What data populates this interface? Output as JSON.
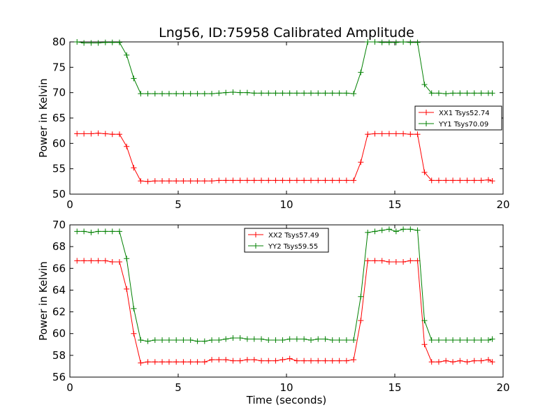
{
  "title": "Lng56, ID:75958 Calibrated Amplitude",
  "chart_data": [
    {
      "type": "line",
      "xlabel": "",
      "ylabel": "Power in Kelvin",
      "xlim": [
        0,
        20
      ],
      "ylim": [
        50,
        80
      ],
      "xticks": [
        "0",
        "5",
        "10",
        "15",
        "20"
      ],
      "yticks": [
        "50",
        "55",
        "60",
        "65",
        "70",
        "75",
        "80"
      ],
      "grid": false,
      "legend_position": "right",
      "x": [
        0.33,
        0.65,
        0.98,
        1.31,
        1.64,
        1.96,
        2.29,
        2.62,
        2.95,
        3.27,
        3.6,
        3.93,
        4.26,
        4.58,
        4.91,
        5.24,
        5.57,
        5.89,
        6.22,
        6.55,
        6.88,
        7.2,
        7.53,
        7.86,
        8.19,
        8.51,
        8.84,
        9.17,
        9.5,
        9.82,
        10.15,
        10.48,
        10.81,
        11.13,
        11.46,
        11.79,
        12.12,
        12.44,
        12.77,
        13.1,
        13.43,
        13.75,
        14.08,
        14.41,
        14.74,
        15.06,
        15.39,
        15.72,
        16.05,
        16.37,
        16.7,
        17.03,
        17.36,
        17.68,
        18.01,
        18.34,
        18.67,
        18.99,
        19.32,
        19.5
      ],
      "series": [
        {
          "name": "XX1 Tsys52.74",
          "color": "#ff0000",
          "values": [
            61.9,
            61.9,
            61.9,
            62.0,
            61.9,
            61.8,
            61.8,
            59.4,
            55.2,
            52.6,
            52.5,
            52.6,
            52.6,
            52.6,
            52.6,
            52.6,
            52.6,
            52.6,
            52.6,
            52.6,
            52.7,
            52.7,
            52.7,
            52.7,
            52.7,
            52.7,
            52.7,
            52.7,
            52.7,
            52.7,
            52.7,
            52.7,
            52.7,
            52.7,
            52.7,
            52.7,
            52.7,
            52.7,
            52.7,
            52.7,
            56.3,
            61.8,
            61.9,
            61.9,
            61.9,
            61.9,
            61.9,
            61.8,
            61.8,
            54.3,
            52.7,
            52.7,
            52.7,
            52.7,
            52.7,
            52.7,
            52.7,
            52.7,
            52.8,
            52.6
          ]
        },
        {
          "name": "YY1 Tsys70.09",
          "color": "#008000",
          "values": [
            80.0,
            79.8,
            79.8,
            79.8,
            79.9,
            79.9,
            79.9,
            77.4,
            72.8,
            69.8,
            69.8,
            69.8,
            69.8,
            69.8,
            69.8,
            69.8,
            69.8,
            69.8,
            69.8,
            69.8,
            69.9,
            70.0,
            70.1,
            70.0,
            70.0,
            69.9,
            69.9,
            69.9,
            69.9,
            69.9,
            69.9,
            69.9,
            69.9,
            69.9,
            69.9,
            69.9,
            69.9,
            69.9,
            69.9,
            69.8,
            74.0,
            80.0,
            80.0,
            79.9,
            79.9,
            79.9,
            80.0,
            79.9,
            79.9,
            71.6,
            69.9,
            69.9,
            69.8,
            69.9,
            69.9,
            69.9,
            69.9,
            69.9,
            69.9,
            69.9
          ]
        }
      ]
    },
    {
      "type": "line",
      "xlabel": "Time (seconds)",
      "ylabel": "Power in Kelvin",
      "xlim": [
        0,
        20
      ],
      "ylim": [
        56,
        70
      ],
      "xticks": [
        "0",
        "5",
        "10",
        "15",
        "20"
      ],
      "yticks": [
        "56",
        "58",
        "60",
        "62",
        "64",
        "66",
        "68",
        "70"
      ],
      "grid": false,
      "legend_position": "top-center",
      "x": [
        0.33,
        0.65,
        0.98,
        1.31,
        1.64,
        1.96,
        2.29,
        2.62,
        2.95,
        3.27,
        3.6,
        3.93,
        4.26,
        4.58,
        4.91,
        5.24,
        5.57,
        5.89,
        6.22,
        6.55,
        6.88,
        7.2,
        7.53,
        7.86,
        8.19,
        8.51,
        8.84,
        9.17,
        9.5,
        9.82,
        10.15,
        10.48,
        10.81,
        11.13,
        11.46,
        11.79,
        12.12,
        12.44,
        12.77,
        13.1,
        13.43,
        13.75,
        14.08,
        14.41,
        14.74,
        15.06,
        15.39,
        15.72,
        16.05,
        16.37,
        16.7,
        17.03,
        17.36,
        17.68,
        18.01,
        18.34,
        18.67,
        18.99,
        19.32,
        19.5
      ],
      "series": [
        {
          "name": "XX2 Tsys57.49",
          "color": "#ff0000",
          "values": [
            66.7,
            66.7,
            66.7,
            66.7,
            66.7,
            66.6,
            66.6,
            64.1,
            60.0,
            57.3,
            57.4,
            57.4,
            57.4,
            57.4,
            57.4,
            57.4,
            57.4,
            57.4,
            57.4,
            57.6,
            57.6,
            57.6,
            57.5,
            57.5,
            57.6,
            57.6,
            57.5,
            57.5,
            57.5,
            57.6,
            57.7,
            57.5,
            57.5,
            57.5,
            57.5,
            57.5,
            57.5,
            57.5,
            57.5,
            57.6,
            61.2,
            66.7,
            66.7,
            66.7,
            66.6,
            66.6,
            66.6,
            66.7,
            66.7,
            59.0,
            57.4,
            57.4,
            57.5,
            57.4,
            57.5,
            57.4,
            57.5,
            57.5,
            57.6,
            57.4
          ]
        },
        {
          "name": "YY2 Tsys59.55",
          "color": "#008000",
          "values": [
            69.4,
            69.4,
            69.3,
            69.4,
            69.4,
            69.4,
            69.4,
            66.9,
            62.3,
            59.4,
            59.3,
            59.4,
            59.4,
            59.4,
            59.4,
            59.4,
            59.4,
            59.3,
            59.3,
            59.4,
            59.4,
            59.5,
            59.6,
            59.6,
            59.5,
            59.5,
            59.5,
            59.4,
            59.4,
            59.4,
            59.5,
            59.5,
            59.5,
            59.4,
            59.5,
            59.5,
            59.4,
            59.4,
            59.4,
            59.4,
            63.4,
            69.3,
            69.4,
            69.5,
            69.6,
            69.4,
            69.6,
            69.6,
            69.5,
            61.2,
            59.4,
            59.4,
            59.4,
            59.4,
            59.4,
            59.4,
            59.4,
            59.4,
            59.4,
            59.5
          ]
        }
      ]
    }
  ]
}
